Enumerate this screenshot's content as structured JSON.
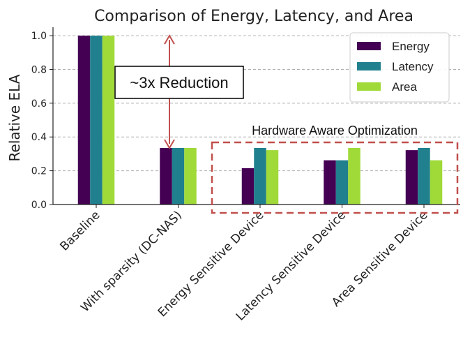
{
  "chart_data": {
    "type": "bar",
    "title": "Comparison of Energy, Latency, and Area",
    "xlabel": "",
    "ylabel": "Relative ELA",
    "ylim": [
      0,
      1.05
    ],
    "yticks": [
      0.0,
      0.2,
      0.4,
      0.6,
      0.8,
      1.0
    ],
    "ytick_labels": [
      "0.0",
      "0.2",
      "0.4",
      "0.6",
      "0.8",
      "1.0"
    ],
    "grid": "horizontal dashed",
    "legend_position": "top-right",
    "categories": [
      "Baseline",
      "With sparsity (DC-NAS)",
      "Energy Sensitive Device",
      "Latency Sensitive Device",
      "Area Sensitive Device"
    ],
    "series": [
      {
        "name": "Energy",
        "color": "#440154",
        "values": [
          1.0,
          0.335,
          0.215,
          0.262,
          0.322
        ]
      },
      {
        "name": "Latency",
        "color": "#21808d",
        "values": [
          1.0,
          0.335,
          0.335,
          0.262,
          0.335
        ]
      },
      {
        "name": "Area",
        "color": "#a0da39",
        "values": [
          1.0,
          0.335,
          0.322,
          0.335,
          0.262
        ]
      }
    ],
    "annotations": {
      "reduction_label": "~3x Reduction",
      "reduction_from": 1.0,
      "reduction_to": 0.335,
      "reduction_arrow_color": "#c0504d",
      "group_label": "Hardware Aware Optimization",
      "group_box_color": "#c0504d"
    }
  }
}
